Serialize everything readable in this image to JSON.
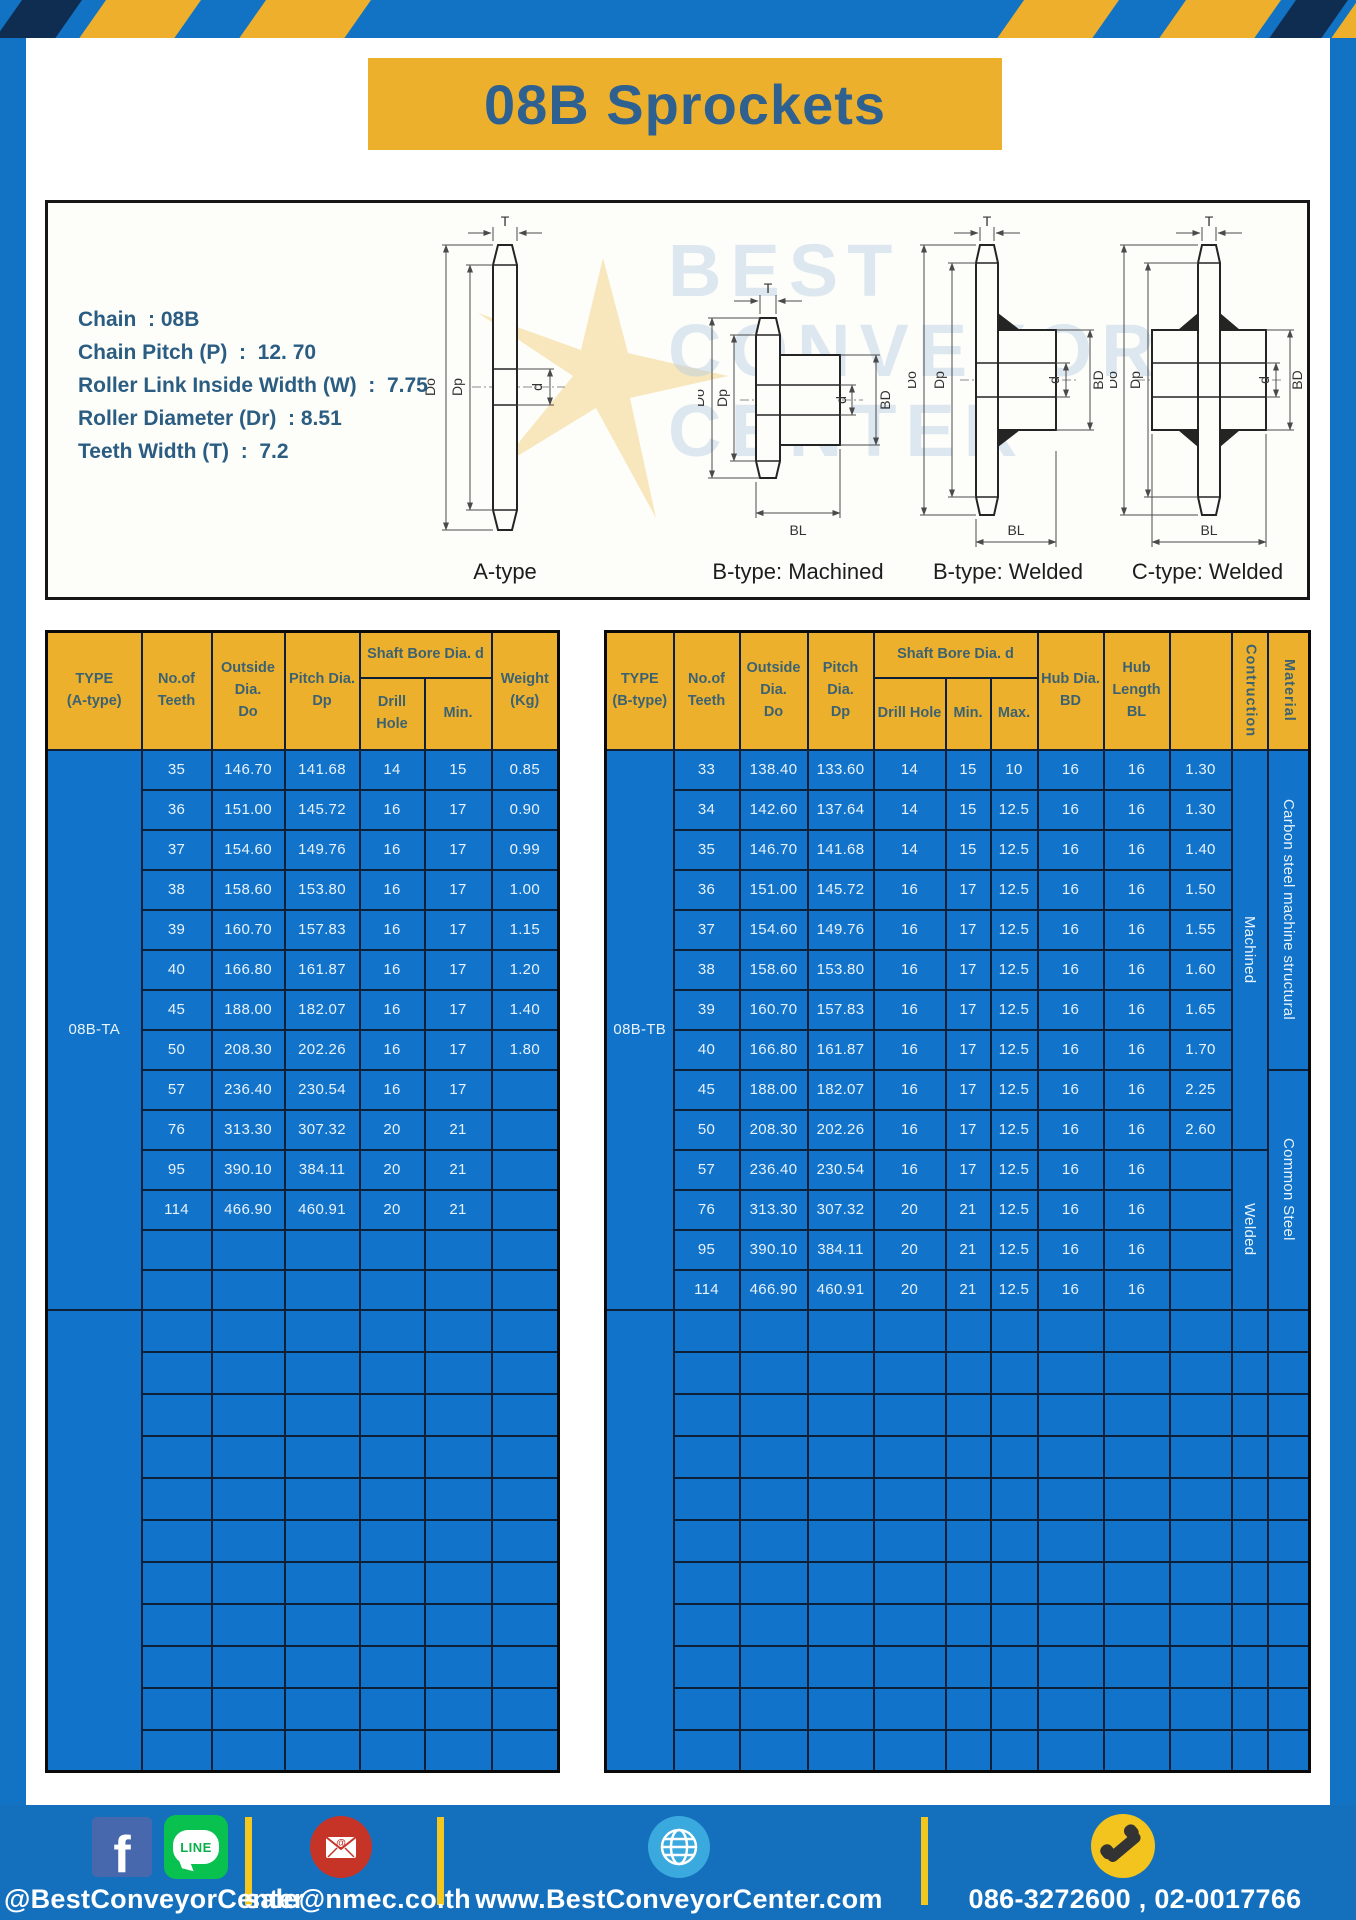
{
  "page_title": "08B Sprockets",
  "specs": {
    "lines": [
      "Chain  : 08B",
      "Chain Pitch (P)  :  12. 70",
      "Roller Link Inside Width (W)  :  7.75",
      "Roller Diameter (Dr)  : 8.51",
      "Teeth Width (T)  :  7.2"
    ]
  },
  "diagram": {
    "captions": [
      "A-type",
      "B-type: Machined",
      "B-type: Welded",
      "C-type: Welded"
    ],
    "dims": {
      "t": "T",
      "outside": "Do",
      "pitch": "Dp",
      "bore": "d",
      "hub_dia": "BD",
      "hub_len": "BL"
    },
    "watermark": {
      "line1": "BEST",
      "line2": "CONVEYOR",
      "line3": "CENTER"
    }
  },
  "left_table": {
    "headers": {
      "type": "TYPE\n(A-type)",
      "teeth": "No.of\nTeeth",
      "outside": "Outside\nDia.\nDo",
      "pitch": "Pitch Dia.\nDp",
      "shaft_bore": "Shaft Bore Dia. d",
      "drill": "Drill Hole",
      "min": "Min.",
      "weight": "Weight\n(Kg)"
    },
    "type_label": "08B-TA",
    "rows": [
      [
        "35",
        "146.70",
        "141.68",
        "14",
        "15",
        "0.85"
      ],
      [
        "36",
        "151.00",
        "145.72",
        "16",
        "17",
        "0.90"
      ],
      [
        "37",
        "154.60",
        "149.76",
        "16",
        "17",
        "0.99"
      ],
      [
        "38",
        "158.60",
        "153.80",
        "16",
        "17",
        "1.00"
      ],
      [
        "39",
        "160.70",
        "157.83",
        "16",
        "17",
        "1.15"
      ],
      [
        "40",
        "166.80",
        "161.87",
        "16",
        "17",
        "1.20"
      ],
      [
        "45",
        "188.00",
        "182.07",
        "16",
        "17",
        "1.40"
      ],
      [
        "50",
        "208.30",
        "202.26",
        "16",
        "17",
        "1.80"
      ],
      [
        "57",
        "236.40",
        "230.54",
        "16",
        "17",
        ""
      ],
      [
        "76",
        "313.30",
        "307.32",
        "20",
        "21",
        ""
      ],
      [
        "95",
        "390.10",
        "384.11",
        "20",
        "21",
        ""
      ],
      [
        "114",
        "466.90",
        "460.91",
        "20",
        "21",
        ""
      ],
      [
        "",
        "",
        "",
        "",
        "",
        ""
      ],
      [
        "",
        "",
        "",
        "",
        "",
        ""
      ]
    ],
    "empty_rows": 11
  },
  "right_table": {
    "headers": {
      "type": "TYPE\n(B-type)",
      "teeth": "No.of\nTeeth",
      "outside": "Outside\nDia.\nDo",
      "pitch": "Pitch Dia.\nDp",
      "shaft_bore": "Shaft Bore Dia. d",
      "drill": "Drill Hole",
      "min": "Min.",
      "max": "Max.",
      "hub_dia": "Hub Dia.\nBD",
      "hub_length": "Hub\nLength\nBL",
      "construction": "Contruction",
      "material": "Material"
    },
    "type_label": "08B-TB",
    "rows": [
      [
        "33",
        "138.40",
        "133.60",
        "14",
        "15",
        "10",
        "16",
        "16",
        "1.30"
      ],
      [
        "34",
        "142.60",
        "137.64",
        "14",
        "15",
        "12.5",
        "16",
        "16",
        "1.30"
      ],
      [
        "35",
        "146.70",
        "141.68",
        "14",
        "15",
        "12.5",
        "16",
        "16",
        "1.40"
      ],
      [
        "36",
        "151.00",
        "145.72",
        "16",
        "17",
        "12.5",
        "16",
        "16",
        "1.50"
      ],
      [
        "37",
        "154.60",
        "149.76",
        "16",
        "17",
        "12.5",
        "16",
        "16",
        "1.55"
      ],
      [
        "38",
        "158.60",
        "153.80",
        "16",
        "17",
        "12.5",
        "16",
        "16",
        "1.60"
      ],
      [
        "39",
        "160.70",
        "157.83",
        "16",
        "17",
        "12.5",
        "16",
        "16",
        "1.65"
      ],
      [
        "40",
        "166.80",
        "161.87",
        "16",
        "17",
        "12.5",
        "16",
        "16",
        "1.70"
      ],
      [
        "45",
        "188.00",
        "182.07",
        "16",
        "17",
        "12.5",
        "16",
        "16",
        "2.25"
      ],
      [
        "50",
        "208.30",
        "202.26",
        "16",
        "17",
        "12.5",
        "16",
        "16",
        "2.60"
      ],
      [
        "57",
        "236.40",
        "230.54",
        "16",
        "17",
        "12.5",
        "16",
        "16",
        ""
      ],
      [
        "76",
        "313.30",
        "307.32",
        "20",
        "21",
        "12.5",
        "16",
        "16",
        ""
      ],
      [
        "95",
        "390.10",
        "384.11",
        "20",
        "21",
        "12.5",
        "16",
        "16",
        ""
      ],
      [
        "114",
        "466.90",
        "460.91",
        "20",
        "21",
        "12.5",
        "16",
        "16",
        ""
      ]
    ],
    "construction_groups": [
      {
        "label": "Machined",
        "span": 10
      },
      {
        "label": "Welded",
        "span": 4
      }
    ],
    "material_groups": [
      {
        "label": "Carbon steel  machine structural",
        "span": 8
      },
      {
        "label": "Common Steel",
        "span": 6
      }
    ],
    "empty_rows": 11
  },
  "footer": {
    "facebook_glyph": "f",
    "line_label": "LINE",
    "social_handle": "@BestConveyorCenter",
    "email": "sale@nmec.co.th",
    "website": "www.BestConveyorCenter.com",
    "phone_numbers": "086-3272600 , 02-0017766"
  }
}
